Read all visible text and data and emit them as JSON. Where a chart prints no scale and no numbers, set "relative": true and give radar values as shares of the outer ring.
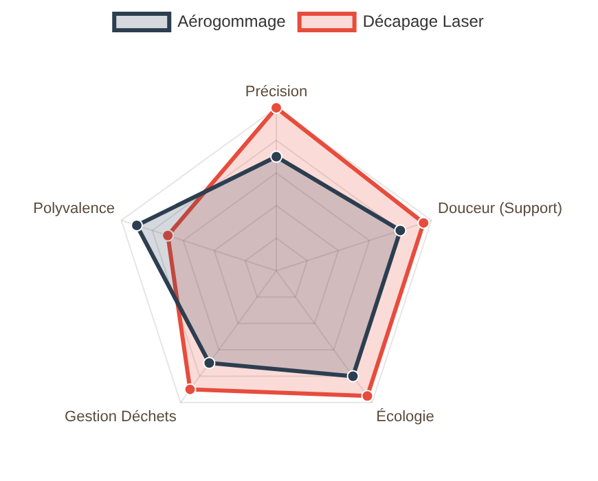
{
  "chart_data": {
    "type": "radar",
    "relative": true,
    "categories": [
      "Précision",
      "Douceur (Support)",
      "Écologie",
      "Gestion Déchets",
      "Polyvalence"
    ],
    "series": [
      {
        "name": "Aérogommage",
        "color": "#2c3e50",
        "values": [
          0.7,
          0.8,
          0.8,
          0.7,
          0.9
        ]
      },
      {
        "name": "Décapage Laser",
        "color": "#e74c3c",
        "values": [
          1,
          0.95,
          0.95,
          0.9,
          0.7
        ]
      }
    ],
    "legend": "top",
    "grid": true,
    "marker": "circle"
  }
}
